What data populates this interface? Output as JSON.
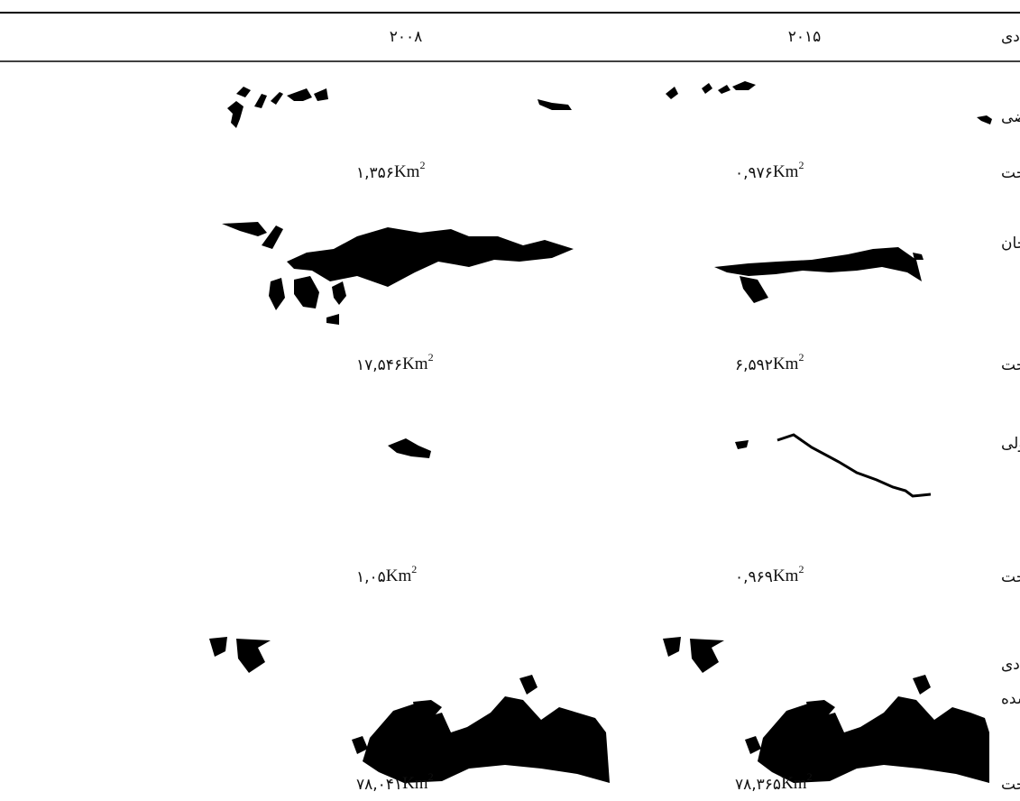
{
  "table": {
    "header": [
      "لندفرم‌های بادی",
      "۲۰۰۸",
      "۲۰۱۵"
    ],
    "unit": "Km",
    "unit_power": "2",
    "rows": [
      {
        "label": "تپه‌ماسه‌ای عرضی"
      },
      {
        "label": "مساحت",
        "values": [
          "۱,۳۵۶",
          "۰,۹۷۶"
        ]
      },
      {
        "label": "برخان"
      },
      {
        "label": "مساحت",
        "values": [
          "۱۷,۵۴۶",
          "۶,۵۹۲"
        ]
      },
      {
        "label": "تپه‌ماسه‌ای طولی"
      },
      {
        "label": "مساحت",
        "values": [
          "۱,۰۵",
          "۰,۹۶۹"
        ]
      },
      {
        "label": [
          "لندفرم‌های بادی",
          "تثبیت‌شده"
        ]
      },
      {
        "label": "مساحت",
        "values": [
          "۷۸,۰۴۱",
          "۷۸,۳۶۵"
        ]
      }
    ]
  }
}
